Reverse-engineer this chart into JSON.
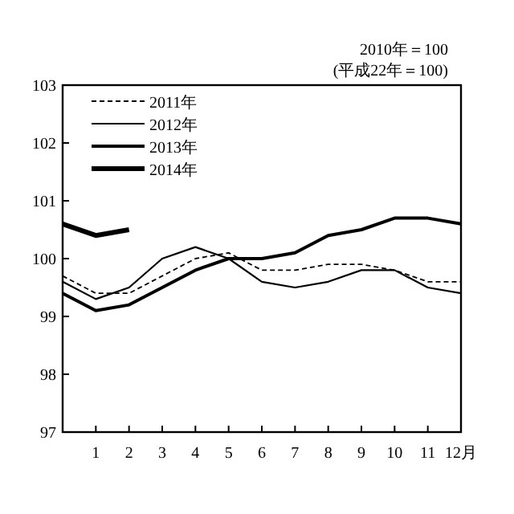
{
  "chart_data": {
    "type": "line",
    "annotations": [
      "2010年＝100",
      "(平成22年＝100)"
    ],
    "x": [
      0,
      1,
      2,
      3,
      4,
      5,
      6,
      7,
      8,
      9,
      10,
      11,
      12
    ],
    "xlim": [
      0,
      12
    ],
    "xticks": [
      1,
      2,
      3,
      4,
      5,
      6,
      7,
      8,
      9,
      10,
      11,
      {
        "value": 12,
        "label": "12月"
      }
    ],
    "ylim": [
      97,
      103
    ],
    "yticks": [
      97,
      98,
      99,
      100,
      101,
      102,
      103
    ],
    "grid": false,
    "legend": "top left",
    "series": [
      {
        "name": "2011年",
        "color": "#000000",
        "line_style": "dashed",
        "values": [
          99.7,
          99.4,
          99.4,
          99.7,
          100.0,
          100.1,
          99.8,
          99.8,
          99.9,
          99.9,
          99.8,
          99.6,
          99.6
        ]
      },
      {
        "name": "2012年",
        "color": "#000000",
        "line_style": "solid",
        "values": [
          99.6,
          99.3,
          99.5,
          100.0,
          100.2,
          100.0,
          99.6,
          99.5,
          99.6,
          99.8,
          99.8,
          99.5,
          99.4
        ]
      },
      {
        "name": "2013年",
        "color": "#000000",
        "line_style": "solid",
        "values": [
          99.4,
          99.1,
          99.2,
          99.5,
          99.8,
          100.0,
          100.0,
          100.1,
          100.4,
          100.5,
          100.7,
          100.7,
          100.6
        ]
      },
      {
        "name": "2014年",
        "color": "#000000",
        "line_style": "solid",
        "values": [
          100.6,
          100.4,
          100.5,
          null,
          null,
          null,
          null,
          null,
          null,
          null,
          null,
          null,
          null
        ]
      }
    ]
  }
}
